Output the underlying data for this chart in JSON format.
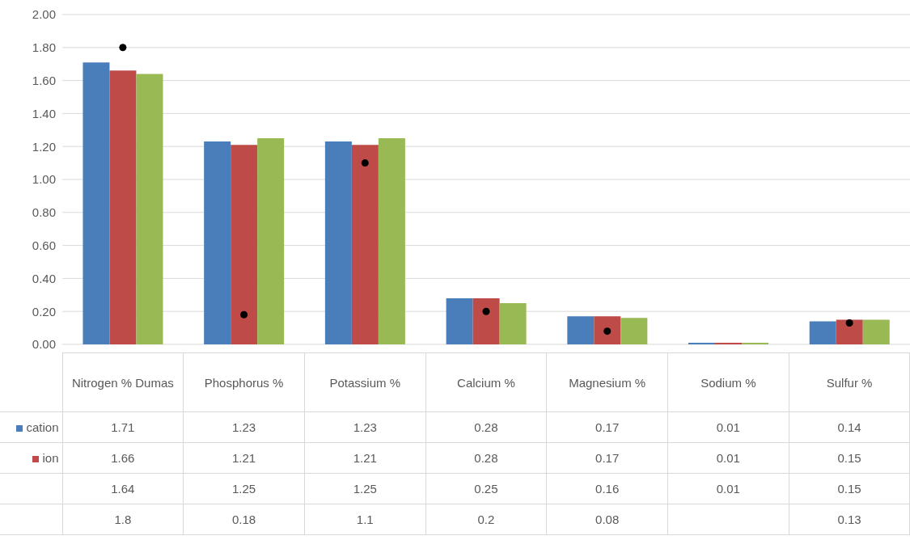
{
  "chart_data": {
    "type": "bar",
    "categories": [
      "Nitrogen % Dumas",
      "Phosphorus %",
      "Potassium %",
      "Calcium %",
      "Magnesium %",
      "Sodium %",
      "Sulfur %"
    ],
    "series": [
      {
        "name": "cation",
        "color": "#4a7ebb",
        "values": [
          1.71,
          1.23,
          1.23,
          0.28,
          0.17,
          0.01,
          0.14
        ]
      },
      {
        "name": "ion",
        "color": "#be4b48",
        "values": [
          1.66,
          1.21,
          1.21,
          0.28,
          0.17,
          0.01,
          0.15
        ]
      },
      {
        "color": "#98b954",
        "values": [
          1.64,
          1.25,
          1.25,
          0.25,
          0.16,
          0.01,
          0.15
        ]
      },
      {
        "type": "scatter",
        "color": "#000000",
        "values": [
          1.8,
          0.18,
          1.1,
          0.2,
          0.08,
          null,
          0.13
        ]
      }
    ],
    "ylim": [
      0,
      2
    ],
    "yticks": [
      {
        "value": 0,
        "label": "0.00"
      },
      {
        "value": 0.2,
        "label": "0.20"
      },
      {
        "value": 0.4,
        "label": "0.40"
      },
      {
        "value": 0.6,
        "label": "0.60"
      },
      {
        "value": 0.8,
        "label": "0.80"
      },
      {
        "value": 1,
        "label": "1.00"
      },
      {
        "value": 1.2,
        "label": "1.20"
      },
      {
        "value": 1.4,
        "label": "1.40"
      },
      {
        "value": 1.6,
        "label": "1.60"
      },
      {
        "value": 1.8,
        "label": "1.80"
      },
      {
        "value": 2,
        "label": "2.00"
      }
    ],
    "grid": "y",
    "legend": "bottom",
    "marker": "circle",
    "data_labels": true
  }
}
